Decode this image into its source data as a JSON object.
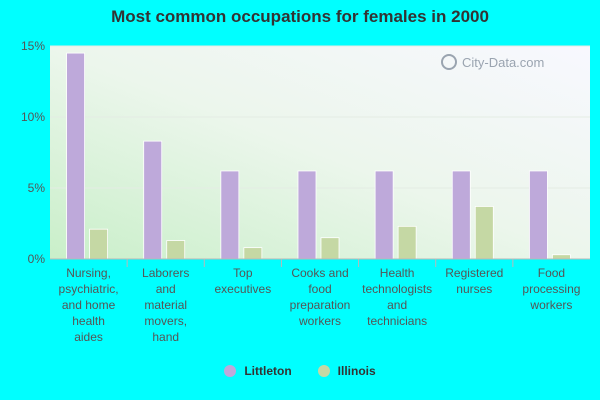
{
  "watermark": "City-Data.com",
  "colors": {
    "background": "#00ffff",
    "series_littleton": "#bea9da",
    "series_illinois": "#c5d8a4"
  },
  "chart_data": {
    "type": "bar",
    "title": "Most common occupations for females in 2000",
    "categories": [
      [
        "Nursing,",
        "psychiatric,",
        "and home",
        "health",
        "aides"
      ],
      [
        "Laborers",
        "and",
        "material",
        "movers,",
        "hand"
      ],
      [
        "Top",
        "executives"
      ],
      [
        "Cooks and",
        "food",
        "preparation",
        "workers"
      ],
      [
        "Health",
        "technologists",
        "and",
        "technicians"
      ],
      [
        "Registered",
        "nurses"
      ],
      [
        "Food",
        "processing",
        "workers"
      ]
    ],
    "series": [
      {
        "name": "Littleton",
        "color": "#bea9da",
        "values": [
          14.5,
          8.3,
          6.2,
          6.2,
          6.2,
          6.2,
          6.2
        ]
      },
      {
        "name": "Illinois",
        "color": "#c5d8a4",
        "values": [
          2.1,
          1.3,
          0.8,
          1.5,
          2.3,
          3.7,
          0.3
        ]
      }
    ],
    "y_ticks": [
      "0%",
      "5%",
      "10%",
      "15%"
    ],
    "ylim": [
      0,
      15
    ],
    "grid": true,
    "legend_position": "bottom"
  }
}
